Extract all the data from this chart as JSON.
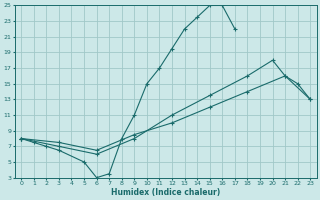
{
  "xlabel": "Humidex (Indice chaleur)",
  "xlim": [
    -0.5,
    23.5
  ],
  "ylim": [
    3,
    25
  ],
  "xticks": [
    0,
    1,
    2,
    3,
    4,
    5,
    6,
    7,
    8,
    9,
    10,
    11,
    12,
    13,
    14,
    15,
    16,
    17,
    18,
    19,
    20,
    21,
    22,
    23
  ],
  "yticks": [
    3,
    5,
    7,
    9,
    11,
    13,
    15,
    17,
    19,
    21,
    23,
    25
  ],
  "bg_color": "#cce8e8",
  "grid_color": "#a0c8c8",
  "line_color": "#1a6b6b",
  "line1_x": [
    0,
    1,
    2,
    3,
    5,
    6,
    7,
    8,
    9,
    10,
    11,
    12,
    13,
    14,
    15,
    16,
    17
  ],
  "line1_y": [
    8,
    7.5,
    7,
    6.5,
    5,
    3,
    3.5,
    8,
    11,
    15,
    17,
    19.5,
    22,
    23.5,
    25,
    25,
    22
  ],
  "line2_x": [
    0,
    3,
    6,
    9,
    12,
    15,
    18,
    20,
    21,
    22,
    23
  ],
  "line2_y": [
    8,
    7,
    6,
    8,
    11,
    13.5,
    16,
    18,
    16,
    15,
    13
  ],
  "line3_x": [
    0,
    3,
    6,
    9,
    12,
    15,
    18,
    21,
    23
  ],
  "line3_y": [
    8,
    7.5,
    6.5,
    8.5,
    10,
    12,
    14,
    16,
    13
  ]
}
